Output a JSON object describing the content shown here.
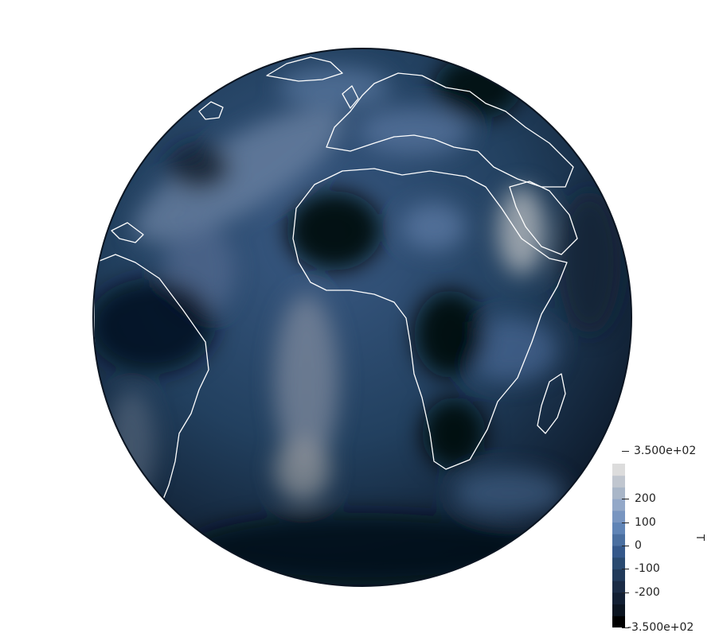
{
  "colorbar": {
    "title": "T",
    "max_label": "3.500e+02",
    "min_label": "-3.500e+02",
    "range": [
      -350,
      350
    ],
    "ticks": [
      {
        "value": 200,
        "label": "200"
      },
      {
        "value": 100,
        "label": "100"
      },
      {
        "value": 0,
        "label": "0"
      },
      {
        "value": -100,
        "label": "-100"
      },
      {
        "value": -200,
        "label": "-200"
      }
    ],
    "levels": 14,
    "colors": [
      "#000000",
      "#0b1420",
      "#121f33",
      "#1a2b45",
      "#213a5a",
      "#2a4a70",
      "#35588a",
      "#4a6fa0",
      "#5f84b6",
      "#7895c0",
      "#93a8c8",
      "#a9b6c8",
      "#c0c6cf",
      "#dcdcdc"
    ]
  },
  "globe": {
    "coastline_color": "#ffffff",
    "ocean_base": "#1f3654",
    "highlight": "#9aa4b2"
  }
}
